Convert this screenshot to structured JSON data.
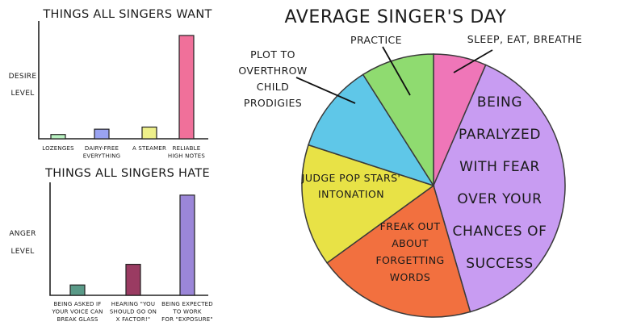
{
  "chart_data": [
    {
      "type": "bar",
      "title": "THINGS ALL SINGERS WANT",
      "ylabel": [
        "DESIRE",
        "LEVEL"
      ],
      "xlabel": "",
      "ylim": [
        0,
        100
      ],
      "categories": [
        [
          "LOZENGES"
        ],
        [
          "DAIRY-FREE",
          "EVERYTHING"
        ],
        [
          "A STEAMER"
        ],
        [
          "RELIABLE",
          "HIGH NOTES"
        ]
      ],
      "values": [
        4,
        9,
        11,
        97
      ],
      "colors": [
        "#b9f2c1",
        "#9aa3f2",
        "#eef08a",
        "#f0709a"
      ]
    },
    {
      "type": "bar",
      "title": "THINGS ALL SINGERS HATE",
      "ylabel": [
        "ANGER",
        "LEVEL"
      ],
      "xlabel": "",
      "ylim": [
        0,
        100
      ],
      "categories": [
        [
          "BEING ASKED IF",
          "YOUR VOICE CAN",
          "BREAK GLASS"
        ],
        [
          "HEARING \"YOU",
          "SHOULD GO ON",
          "X FACTOR!\""
        ],
        [
          "BEING EXPECTED",
          "TO WORK",
          "FOR \"EXPOSURE\""
        ]
      ],
      "values": [
        10,
        30,
        97
      ],
      "colors": [
        "#5a9a88",
        "#9a3b62",
        "#9b86d8"
      ]
    },
    {
      "type": "pie",
      "title": "AVERAGE SINGER'S DAY",
      "slices": [
        {
          "label": [
            "SLEEP, EAT, BREATHE"
          ],
          "value": 6.5,
          "color": "#ef76b8"
        },
        {
          "label": [
            "BEING",
            "PARALYZED",
            "WITH FEAR",
            "OVER YOUR",
            "CHANCES OF",
            "SUCCESS"
          ],
          "value": 39,
          "color": "#c89cf2"
        },
        {
          "label": [
            "FREAK OUT",
            "ABOUT",
            "FORGETTING",
            "WORDS"
          ],
          "value": 19.5,
          "color": "#f2703f"
        },
        {
          "label": [
            "JUDGE POP STARS'",
            "INTONATION"
          ],
          "value": 15,
          "color": "#e8e246"
        },
        {
          "label": [
            "PLOT TO",
            "OVERTHROW",
            "CHILD",
            "PRODIGIES"
          ],
          "value": 11,
          "color": "#5fc7e8"
        },
        {
          "label": [
            "PRACTICE"
          ],
          "value": 9,
          "color": "#8fdb70"
        }
      ]
    }
  ]
}
